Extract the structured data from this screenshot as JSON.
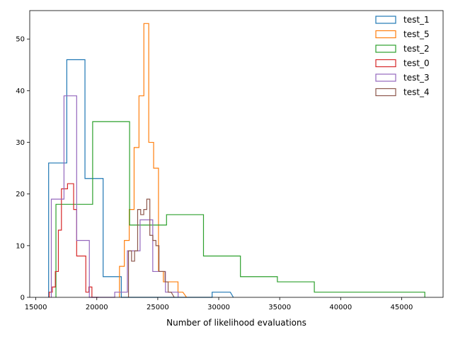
{
  "chart_data": {
    "type": "histogram",
    "title": "",
    "xlabel": "Number of likelihood evaluations",
    "ylabel": "",
    "xlim": [
      14500,
      48400
    ],
    "ylim": [
      0,
      55.5
    ],
    "xticks": [
      15000,
      20000,
      25000,
      30000,
      35000,
      40000,
      45000
    ],
    "yticks": [
      0,
      10,
      20,
      30,
      40,
      50
    ],
    "legend": "top-right",
    "grid": false,
    "series": [
      {
        "name": "test_1",
        "color": "#1f77b4",
        "edges": [
          16050,
          17540,
          19030,
          20520,
          22010,
          23500,
          24990,
          26480,
          27970,
          29460,
          30950
        ],
        "counts": [
          26,
          46,
          23,
          4,
          0,
          0,
          0,
          0,
          0,
          1
        ],
        "edge_end": 31200
      },
      {
        "name": "test_5",
        "color": "#ff7f0e",
        "edges": [
          21860,
          22260,
          22660,
          23060,
          23460,
          23860,
          24260,
          24660,
          25060,
          25460,
          25860,
          26260,
          26660,
          27060
        ],
        "counts": [
          6,
          11,
          17,
          29,
          39,
          53,
          30,
          25,
          5,
          3,
          3,
          3,
          1
        ],
        "edge_end": 27360
      },
      {
        "name": "test_2",
        "color": "#2ca02c",
        "edges": [
          16650,
          19660,
          22690,
          25720,
          28750,
          31780,
          34810,
          37840
        ],
        "counts": [
          18,
          34,
          14,
          16,
          8,
          4,
          3,
          1
        ],
        "edge_end": 46900
      },
      {
        "name": "test_0",
        "color": "#d62728",
        "edges": [
          16100,
          16350,
          16600,
          16850,
          17100,
          17350,
          17600,
          17850,
          18100,
          18350,
          18600,
          18850,
          19100,
          19350,
          19600,
          19850
        ],
        "counts": [
          1,
          2,
          5,
          13,
          21,
          21,
          22,
          22,
          17,
          8,
          8,
          8,
          1,
          2,
          0
        ],
        "edge_end": 20150
      },
      {
        "name": "test_3",
        "color": "#9467bd",
        "edges": [
          16270,
          17310,
          18350,
          19390,
          20430,
          21470,
          22510,
          23550,
          24590,
          25630
        ],
        "counts": [
          19,
          39,
          11,
          0,
          0,
          1,
          9,
          15,
          5,
          1
        ],
        "edge_end": 26670
      },
      {
        "name": "test_4",
        "color": "#8c564b",
        "edges": [
          22600,
          22850,
          23100,
          23350,
          23600,
          23850,
          24100,
          24350,
          24600,
          24850,
          25100,
          25350,
          25600,
          25850,
          26100
        ],
        "counts": [
          9,
          7,
          9,
          17,
          16,
          17,
          19,
          12,
          11,
          10,
          5,
          5,
          3,
          1
        ],
        "edge_end": 26350
      }
    ]
  }
}
